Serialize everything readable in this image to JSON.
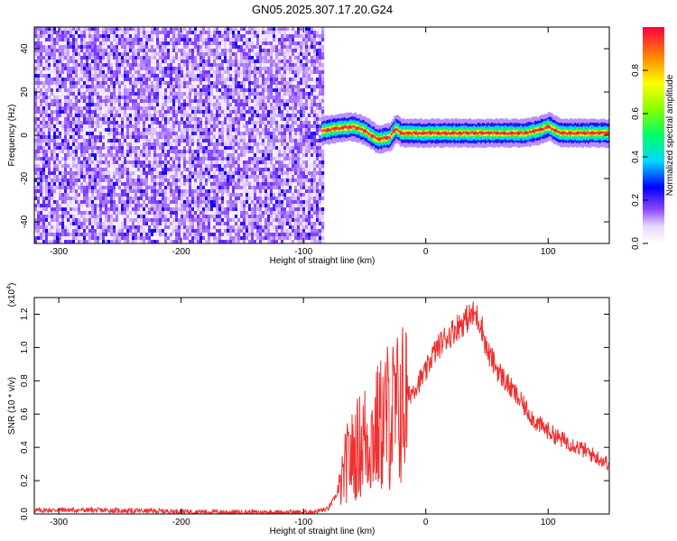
{
  "title": "GN05.2025.307.17.20.G24",
  "chart_data": [
    {
      "type": "heatmap",
      "xlabel": "Height of straight line (km)",
      "ylabel": "Frequency (Hz)",
      "xlim": [
        -320,
        150
      ],
      "ylim": [
        -50,
        50
      ],
      "xticks": [
        -300,
        -200,
        -100,
        0,
        100
      ],
      "yticks": [
        -40,
        -20,
        0,
        20,
        40
      ],
      "colorbar": {
        "label": "Normalized spectral amplitude",
        "range": [
          0,
          1
        ],
        "ticks": [
          "0.0",
          "0.2",
          "0.4",
          "0.6",
          "0.8"
        ]
      },
      "regions": [
        {
          "description": "broadband noise",
          "x_range": [
            -320,
            -85
          ],
          "y_range": [
            -50,
            50
          ],
          "amplitude": [
            0.05,
            0.3
          ]
        },
        {
          "description": "narrow signal band near 0 Hz",
          "x_range": [
            -85,
            150
          ],
          "center_hz": 0,
          "amplitude": [
            0.3,
            1.0
          ]
        }
      ],
      "signal_track": [
        {
          "x": -85,
          "y": 2
        },
        {
          "x": -75,
          "y": 3
        },
        {
          "x": -60,
          "y": 4
        },
        {
          "x": -50,
          "y": 2
        },
        {
          "x": -40,
          "y": -2
        },
        {
          "x": -30,
          "y": -1
        },
        {
          "x": -25,
          "y": 3
        },
        {
          "x": -20,
          "y": 1
        },
        {
          "x": -10,
          "y": 1
        },
        {
          "x": 0,
          "y": 1
        },
        {
          "x": 20,
          "y": 1
        },
        {
          "x": 40,
          "y": 1
        },
        {
          "x": 60,
          "y": 1
        },
        {
          "x": 80,
          "y": 1
        },
        {
          "x": 90,
          "y": 2
        },
        {
          "x": 100,
          "y": 4
        },
        {
          "x": 110,
          "y": 1
        },
        {
          "x": 130,
          "y": 1
        },
        {
          "x": 150,
          "y": 1
        }
      ]
    },
    {
      "type": "line",
      "xlabel": "Height of straight line (km)",
      "ylabel": "SNR (10 * v/v)",
      "yscale_label": "(x10^4)",
      "xlim": [
        -320,
        150
      ],
      "ylim": [
        0,
        1.3
      ],
      "xticks": [
        -300,
        -200,
        -100,
        0,
        100
      ],
      "yticks": [
        0.0,
        0.2,
        0.4,
        0.6,
        0.8,
        1.0,
        1.2
      ],
      "series": [
        {
          "color": "#f03030",
          "x": [
            -320,
            -300,
            -250,
            -200,
            -150,
            -100,
            -90,
            -80,
            -70,
            -65,
            -60,
            -55,
            -50,
            -45,
            -40,
            -35,
            -30,
            -25,
            -20,
            -15,
            -10,
            -5,
            0,
            5,
            10,
            15,
            20,
            25,
            30,
            35,
            40,
            45,
            50,
            60,
            70,
            80,
            90,
            100,
            110,
            120,
            130,
            140,
            150
          ],
          "y": [
            0.02,
            0.025,
            0.02,
            0.015,
            0.01,
            0.01,
            0.015,
            0.03,
            0.15,
            0.3,
            0.35,
            0.4,
            0.45,
            0.45,
            0.5,
            0.55,
            0.6,
            0.6,
            0.65,
            0.7,
            0.75,
            0.8,
            0.85,
            0.95,
            1.0,
            1.05,
            1.08,
            1.12,
            1.15,
            1.18,
            1.2,
            1.15,
            0.98,
            0.85,
            0.75,
            0.65,
            0.55,
            0.5,
            0.45,
            0.42,
            0.38,
            0.34,
            0.3
          ]
        }
      ]
    }
  ]
}
